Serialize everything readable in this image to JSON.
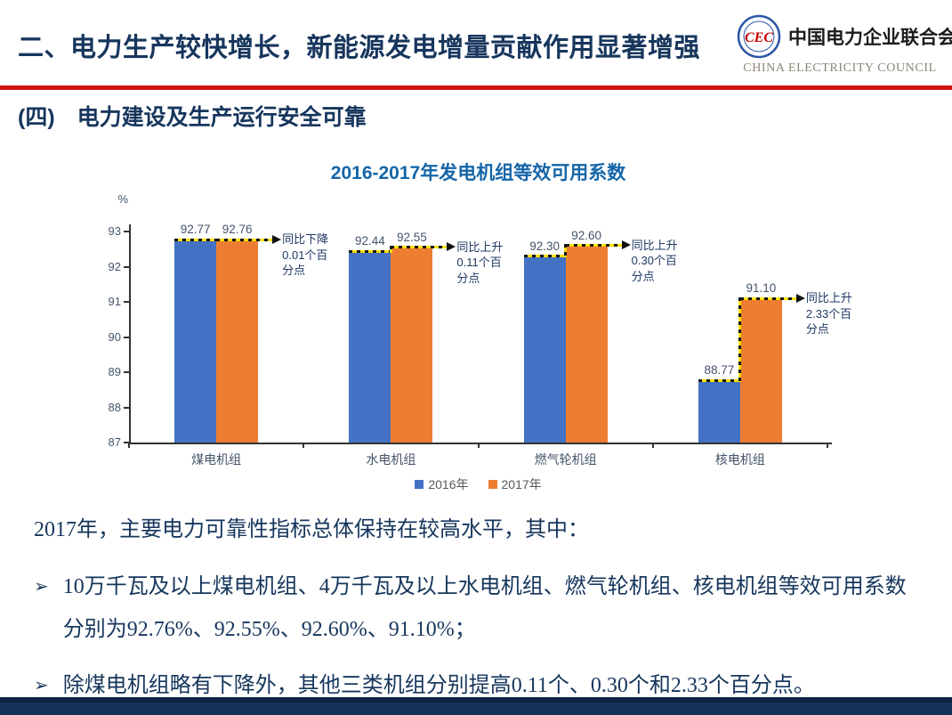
{
  "header": {
    "title": "二、电力生产较快增长，新能源发电增量贡献作用显著增强",
    "logo": {
      "monogram": "CEC",
      "org_cn": "中国电力企业联合会",
      "org_en": "CHINA ELECTRICITY COUNCIL"
    }
  },
  "section": {
    "title": "(四)　电力建设及生产运行安全可靠"
  },
  "chart_data": {
    "type": "bar",
    "title": "2016-2017年发电机组等效可用系数",
    "unit_label": "%",
    "categories": [
      "煤电机组",
      "水电机组",
      "燃气轮机组",
      "核电机组"
    ],
    "series": [
      {
        "name": "2016年",
        "color": "#4472C4",
        "values": [
          92.77,
          92.44,
          92.3,
          88.77
        ]
      },
      {
        "name": "2017年",
        "color": "#ED7D31",
        "values": [
          92.76,
          92.55,
          92.6,
          91.1
        ]
      }
    ],
    "ylim": [
      87,
      93
    ],
    "ytick_step": 1,
    "grid": false,
    "legend_position": "bottom",
    "annotations": [
      "同比下降\n0.01个百\n分点",
      "同比上升\n0.11个百\n分点",
      "同比上升\n0.30个百\n分点",
      "同比上升\n2.33个百\n分点"
    ]
  },
  "body": {
    "intro": "2017年，主要电力可靠性指标总体保持在较高水平，其中：",
    "bullet_marker": "➢",
    "bullets": [
      "10万千瓦及以上煤电机组、4万千瓦及以上水电机组、燃气轮机组、核电机组等效可用系数分别为92.76%、92.55%、92.60%、91.10%；",
      "除煤电机组略有下降外，其他三类机组分别提高0.11个、0.30个和2.33个百分点。"
    ]
  }
}
